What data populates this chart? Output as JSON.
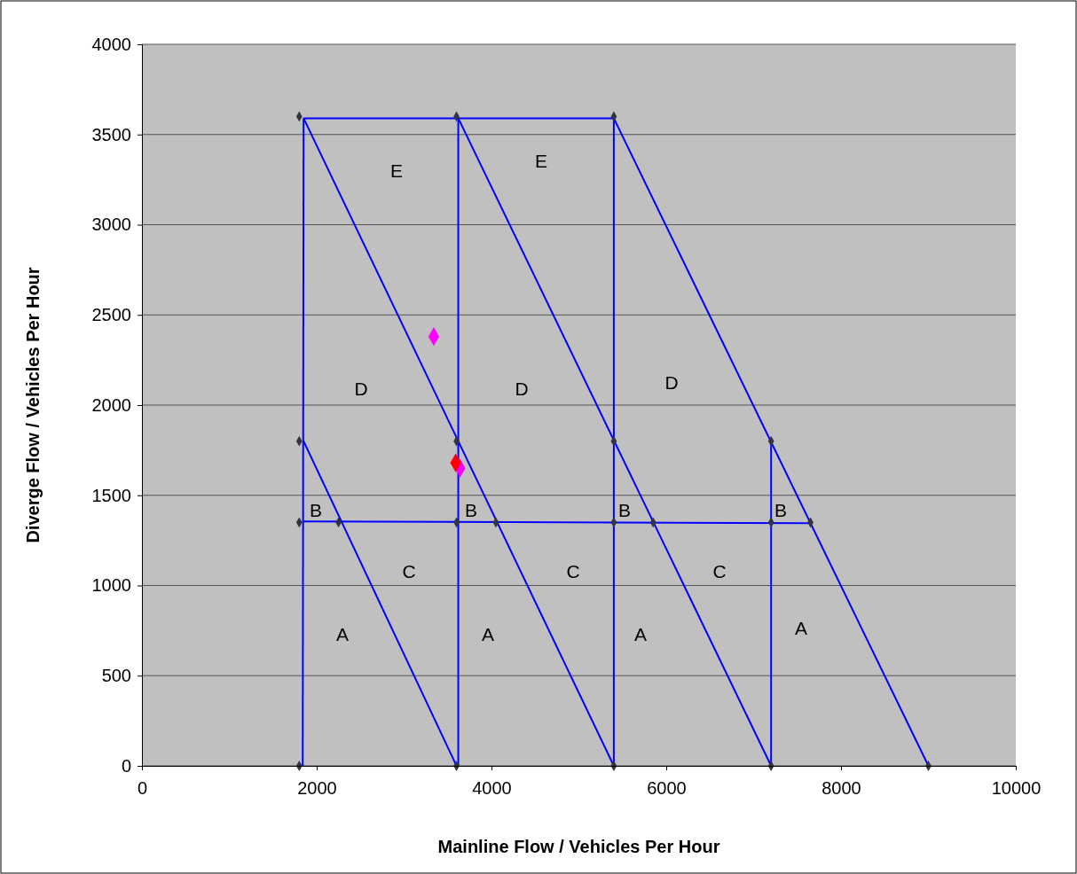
{
  "chart_data": {
    "type": "scatter",
    "xlabel": "Mainline Flow / Vehicles Per Hour",
    "ylabel": "Diverge Flow / Vehicles Per Hour",
    "xlim": [
      0,
      10000
    ],
    "xticks": [
      0,
      2000,
      4000,
      6000,
      8000,
      10000
    ],
    "ylim": [
      0,
      4000
    ],
    "yticks": [
      0,
      500,
      1000,
      1500,
      2000,
      2500,
      3000,
      3500,
      4000
    ],
    "grid": "y",
    "series": [
      {
        "type": "line",
        "color": "#0000ff",
        "marker": "none",
        "x": [
          1850,
          5400
        ],
        "values": [
          3590,
          3590
        ]
      },
      {
        "type": "line",
        "color": "#0000ff",
        "marker": "none",
        "x": [
          1840,
          1850
        ],
        "values": [
          0,
          3590
        ]
      },
      {
        "type": "line",
        "color": "#0000ff",
        "marker": "none",
        "x": [
          3620,
          3620
        ],
        "values": [
          0,
          3590
        ]
      },
      {
        "type": "line",
        "color": "#0000ff",
        "marker": "none",
        "x": [
          5400,
          5400
        ],
        "values": [
          0,
          3590
        ]
      },
      {
        "type": "line",
        "color": "#0000ff",
        "marker": "none",
        "x": [
          7200,
          7200
        ],
        "values": [
          0,
          1800
        ]
      },
      {
        "type": "line",
        "color": "#0000ff",
        "marker": "none",
        "x": [
          1850,
          5400
        ],
        "values": [
          3590,
          0
        ]
      },
      {
        "type": "line",
        "color": "#0000ff",
        "marker": "none",
        "x": [
          3620,
          7200
        ],
        "values": [
          3590,
          0
        ]
      },
      {
        "type": "line",
        "color": "#0000ff",
        "marker": "none",
        "x": [
          5400,
          9000
        ],
        "values": [
          3590,
          0
        ]
      },
      {
        "type": "line",
        "color": "#0000ff",
        "marker": "none",
        "x": [
          1850,
          3600
        ],
        "values": [
          1800,
          0
        ]
      },
      {
        "type": "line",
        "color": "#0000ff",
        "marker": "none",
        "x": [
          1850,
          7650
        ],
        "values": [
          1355,
          1345
        ]
      },
      {
        "color": "#333344",
        "marker": "diamond",
        "x": [
          1800,
          3600,
          5400,
          1800,
          3600,
          5400,
          7200,
          1800,
          2250,
          3600,
          4050,
          5400,
          5850,
          7200,
          7650,
          1800,
          3600,
          5400,
          7200,
          9000
        ],
        "values": [
          3600,
          3600,
          3600,
          1800,
          1800,
          1800,
          1800,
          1350,
          1350,
          1350,
          1350,
          1350,
          1350,
          1350,
          1350,
          0,
          0,
          0,
          0,
          0
        ]
      },
      {
        "color": "#ff00ff",
        "marker": "diamond",
        "x": [
          3340,
          3640
        ],
        "values": [
          2380,
          1650
        ]
      },
      {
        "color": "#ff0000",
        "marker": "diamond",
        "x": [
          3590
        ],
        "values": [
          1680
        ]
      }
    ],
    "annotations": [
      "E",
      "E",
      "D",
      "D",
      "D",
      "B",
      "B",
      "B",
      "B",
      "C",
      "C",
      "C",
      "A",
      "A",
      "A",
      "A"
    ]
  }
}
